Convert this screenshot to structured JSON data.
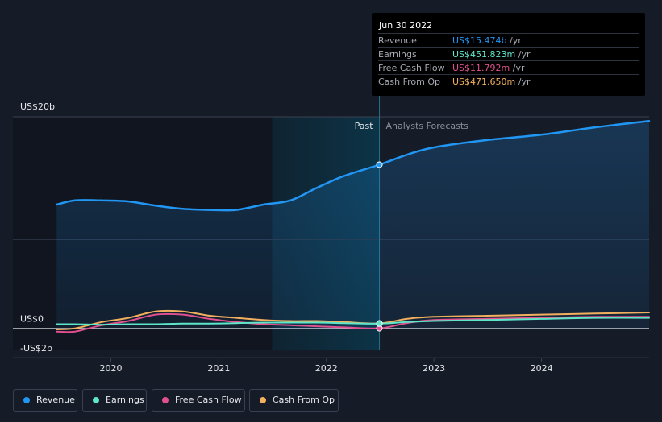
{
  "chart_data": {
    "type": "line",
    "x": [
      "2019-07-01",
      "2019-09-01",
      "2019-12-01",
      "2020-03-01",
      "2020-06-01",
      "2020-09-01",
      "2020-12-01",
      "2021-03-01",
      "2021-06-01",
      "2021-09-01",
      "2021-12-01",
      "2022-03-01",
      "2022-06-30",
      "2022-09-30",
      "2022-12-31",
      "2023-06-30",
      "2023-12-31",
      "2024-06-30",
      "2024-12-31"
    ],
    "series": [
      {
        "name": "Revenue",
        "color": "#2196f3",
        "values": [
          11.7,
          12.1,
          12.1,
          12.0,
          11.6,
          11.3,
          11.2,
          11.2,
          11.7,
          12.1,
          13.3,
          14.4,
          15.474,
          16.4,
          17.1,
          17.8,
          18.3,
          19.0,
          19.6
        ]
      },
      {
        "name": "Earnings",
        "color": "#5ee6c9",
        "values": [
          0.4,
          0.4,
          0.35,
          0.4,
          0.4,
          0.45,
          0.45,
          0.5,
          0.55,
          0.55,
          0.55,
          0.5,
          0.452,
          0.6,
          0.7,
          0.8,
          0.9,
          1.0,
          1.0
        ]
      },
      {
        "name": "Free Cash Flow",
        "color": "#e0508f",
        "values": [
          -0.3,
          -0.3,
          0.3,
          0.7,
          1.3,
          1.3,
          0.9,
          0.6,
          0.4,
          0.3,
          0.2,
          0.1,
          0.012,
          0.5,
          0.8,
          0.9,
          1.0,
          1.1,
          1.1
        ]
      },
      {
        "name": "Cash From Op",
        "color": "#f2b05e",
        "values": [
          -0.1,
          0.0,
          0.6,
          1.0,
          1.6,
          1.6,
          1.2,
          1.0,
          0.8,
          0.7,
          0.7,
          0.6,
          0.472,
          0.9,
          1.1,
          1.2,
          1.3,
          1.4,
          1.5
        ]
      }
    ],
    "ylim": [
      -2,
      20
    ],
    "xlim": [
      "2019-05-01",
      "2024-12-31"
    ],
    "y_tick_labels": [
      "US$20b",
      "US$0",
      "-US$2b"
    ],
    "x_tick_labels": [
      "2020",
      "2021",
      "2022",
      "2023",
      "2024"
    ],
    "x_tick_dates": [
      "2020-01-01",
      "2021-01-01",
      "2022-01-01",
      "2023-01-01",
      "2024-01-01"
    ],
    "divider_date": "2022-06-30",
    "highlight_start": "2021-07-01",
    "past_label": "Past",
    "forecast_label": "Analysts Forecasts",
    "legend_position": "bottom"
  },
  "tooltip": {
    "date": "Jun 30 2022",
    "rows": [
      {
        "label": "Revenue",
        "value": "US$15.474b",
        "unit": "/yr",
        "color": "#2196f3"
      },
      {
        "label": "Earnings",
        "value": "US$451.823m",
        "unit": "/yr",
        "color": "#5ee6c9"
      },
      {
        "label": "Free Cash Flow",
        "value": "US$11.792m",
        "unit": "/yr",
        "color": "#e0508f"
      },
      {
        "label": "Cash From Op",
        "value": "US$471.650m",
        "unit": "/yr",
        "color": "#f2b05e"
      }
    ]
  },
  "legend": [
    {
      "label": "Revenue",
      "color": "#2196f3"
    },
    {
      "label": "Earnings",
      "color": "#5ee6c9"
    },
    {
      "label": "Free Cash Flow",
      "color": "#e0508f"
    },
    {
      "label": "Cash From Op",
      "color": "#f2b05e"
    }
  ]
}
